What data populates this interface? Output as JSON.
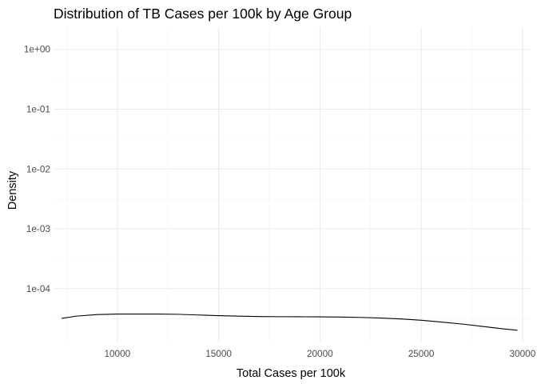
{
  "chart_data": {
    "type": "line",
    "title": "Distribution of TB Cases per 100k by Age Group",
    "xlabel": "Total Cases per 100k",
    "ylabel": "Density",
    "y_scale": "log10",
    "x_ticks": [
      10000,
      15000,
      20000,
      25000,
      30000
    ],
    "x_tick_labels": [
      "10000",
      "15000",
      "20000",
      "25000",
      "30000"
    ],
    "y_ticks": [
      0.0001,
      0.001,
      0.01,
      0.1,
      1
    ],
    "y_tick_labels": [
      "1e-04",
      "1e-03",
      "1e-02",
      "1e-01",
      "1e+00"
    ],
    "xlim": [
      6850,
      30400
    ],
    "ylim": [
      1.3e-05,
      2.35
    ],
    "grid": true,
    "legend": "none",
    "colors": {
      "line": "#000000",
      "grid_major": "#ebebeb",
      "grid_minor": "#f3f3f3",
      "background": "#ffffff"
    },
    "series": [
      {
        "x": [
          7250,
          8000,
          9000,
          10000,
          11000,
          12000,
          13000,
          14000,
          15000,
          16000,
          17000,
          18000,
          19000,
          20000,
          21000,
          22000,
          23000,
          24000,
          25000,
          26000,
          27000,
          28000,
          29000,
          29750
        ],
        "y": [
          3.18e-05,
          3.47e-05,
          3.68e-05,
          3.75e-05,
          3.76e-05,
          3.75e-05,
          3.72e-05,
          3.62e-05,
          3.53e-05,
          3.46e-05,
          3.41e-05,
          3.39e-05,
          3.38e-05,
          3.37e-05,
          3.35e-05,
          3.3e-05,
          3.22e-05,
          3.11e-05,
          2.96e-05,
          2.76e-05,
          2.56e-05,
          2.34e-05,
          2.13e-05,
          2.01e-05
        ]
      }
    ]
  }
}
